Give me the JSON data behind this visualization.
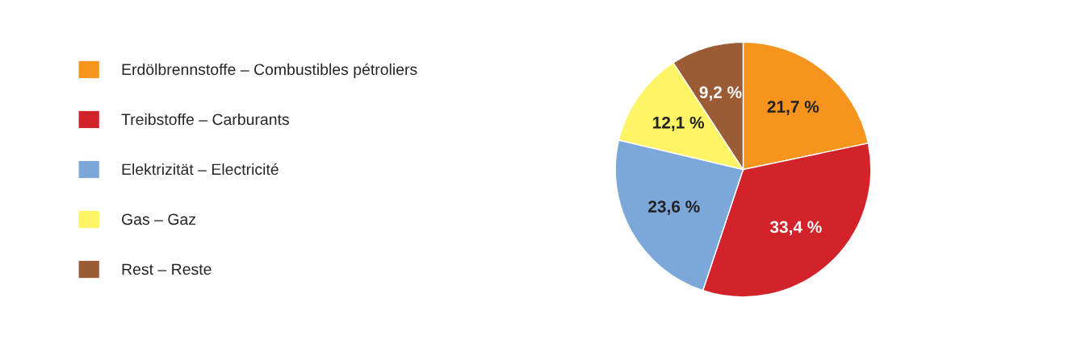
{
  "chart_data": {
    "type": "pie",
    "categories": [
      "Erdölbrennstoffe – Combustibles pétroliers",
      "Treibstoffe – Carburants",
      "Elektrizität – Electricité",
      "Gas – Gaz",
      "Rest – Reste"
    ],
    "values": [
      21.7,
      33.4,
      23.6,
      12.1,
      9.2
    ],
    "colors": [
      "#f7941d",
      "#d2232a",
      "#7ba7d9",
      "#fff465",
      "#9a5b35"
    ],
    "value_labels": [
      "21,7 %",
      "33,4 %",
      "23,6 %",
      "12,1 %",
      "9,2 %"
    ],
    "legend": "left"
  }
}
